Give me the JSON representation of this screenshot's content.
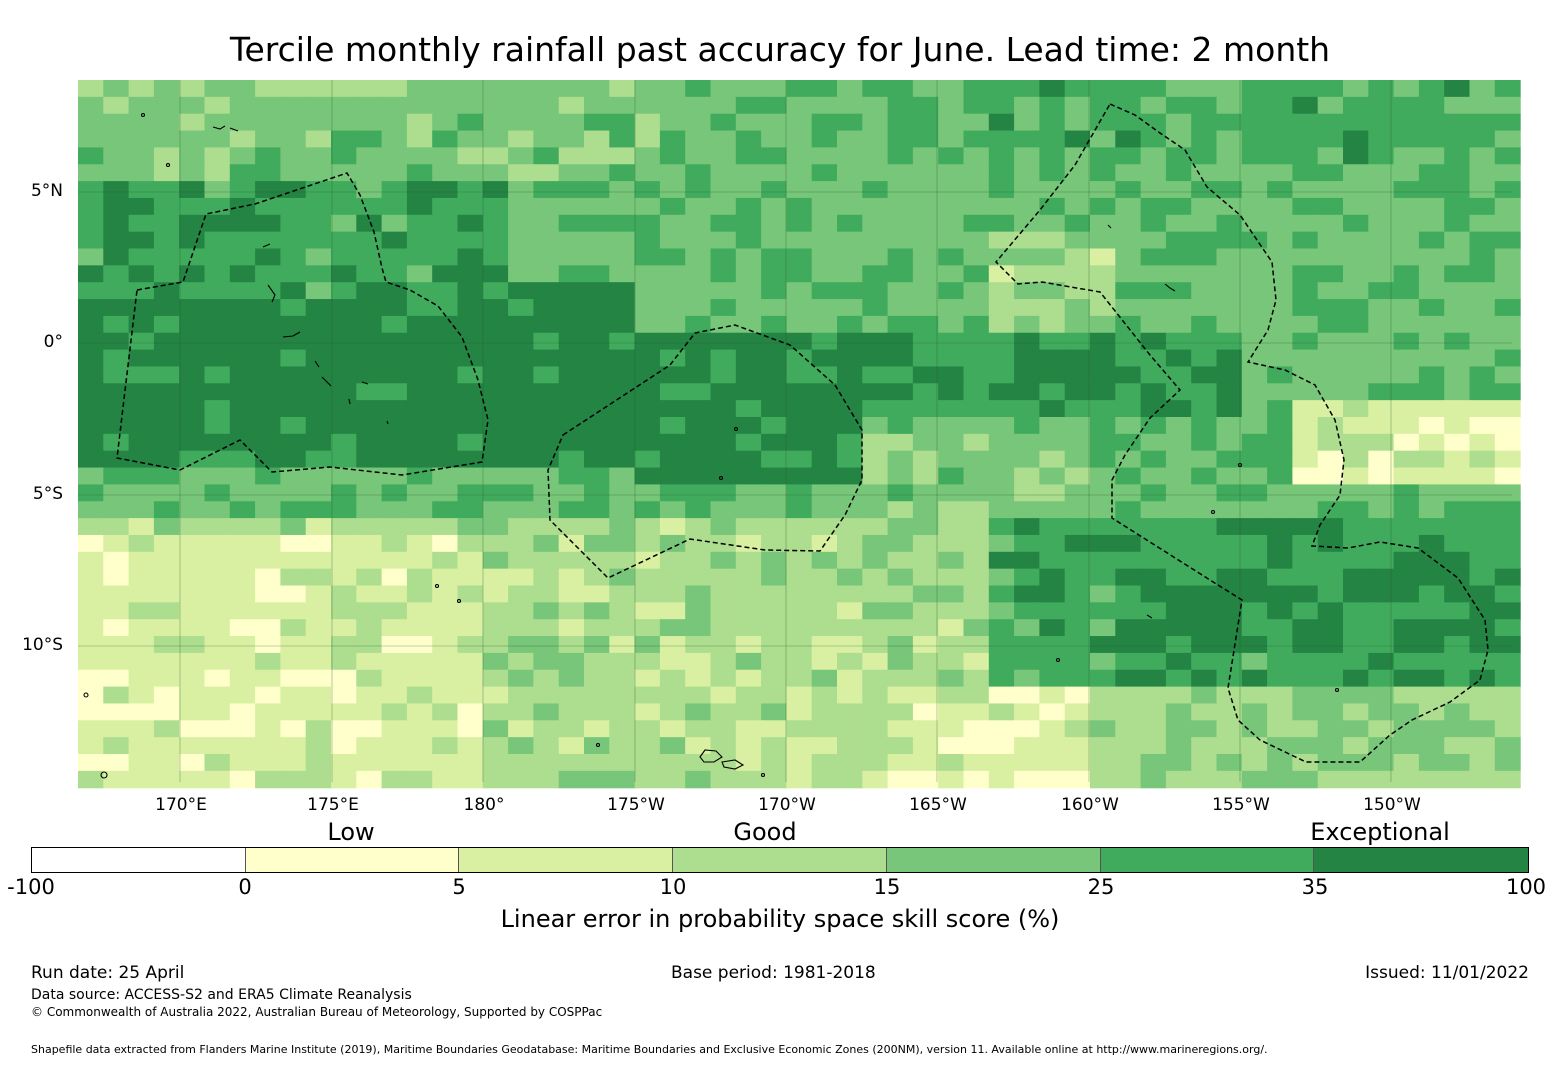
{
  "title": "Tercile monthly rainfall past accuracy for June. Lead time: 2 month",
  "map": {
    "lat_labels": [
      "5°N",
      "0°",
      "5°S",
      "10°S"
    ],
    "lon_labels": [
      "170°E",
      "175°E",
      "180°",
      "175°W",
      "170°W",
      "165°W",
      "160°W",
      "155°W",
      "150°W"
    ],
    "lon_range": [
      "167°E",
      "146°W"
    ],
    "lat_range": [
      "8°N",
      "14.5°S"
    ]
  },
  "legend": {
    "categories": [
      "Low",
      "Good",
      "Exceptional"
    ],
    "ticks": [
      "-100",
      "0",
      "5",
      "10",
      "15",
      "25",
      "35",
      "100"
    ],
    "colors": [
      "#ffffff",
      "#ffffcc",
      "#d9f0a3",
      "#addd8e",
      "#78c679",
      "#41ab5d",
      "#238443"
    ],
    "label": "Linear error in probability space skill score (%)"
  },
  "footer": {
    "run_date": "Run date: 25 April",
    "base_period": "Base period: 1981-2018",
    "issued": "Issued: 11/01/2022",
    "data_source": "Data source: ACCESS-S2 and ERA5 Climate Reanalysis",
    "copyright": "© Commonwealth of Australia 2022, Australian Bureau of Meteorology, Supported by COSPPac",
    "shapefile": "Shapefile data extracted from Flanders Marine Institute (2019), Maritime Boundaries Geodatabase: Maritime Boundaries and Exclusive Economic Zones (200NM), version 11. Available online at http://www.marineregions.org/."
  }
}
